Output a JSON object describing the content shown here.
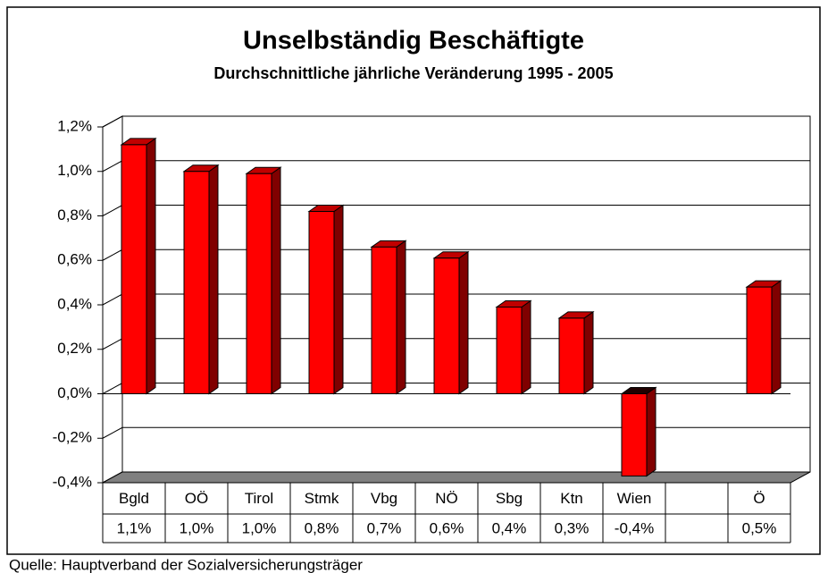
{
  "chart_data": {
    "type": "bar3d",
    "title": "Unselbständig Beschäftigte",
    "subtitle": "Durchschnittliche jährliche Veränderung 1995 - 2005",
    "categories": [
      "Bgld",
      "OÖ",
      "Tirol",
      "Stmk",
      "Vbg",
      "NÖ",
      "Sbg",
      "Ktn",
      "Wien",
      null,
      "Ö"
    ],
    "values": [
      1.12,
      1.0,
      0.99,
      0.82,
      0.66,
      0.61,
      0.39,
      0.34,
      -0.37,
      null,
      0.48
    ],
    "value_labels": [
      "1,1%",
      "1,0%",
      "1,0%",
      "0,8%",
      "0,7%",
      "0,6%",
      "0,4%",
      "0,3%",
      "-0,4%",
      null,
      "0,5%"
    ],
    "color": "#ff0000",
    "ylim": [
      -0.4,
      1.2
    ],
    "yticks": [
      {
        "value": -0.4,
        "label": "-0,4%"
      },
      {
        "value": -0.2,
        "label": "-0,2%"
      },
      {
        "value": 0,
        "label": "0,0%"
      },
      {
        "value": 0.2,
        "label": "0,2%"
      },
      {
        "value": 0.4,
        "label": "0,4%"
      },
      {
        "value": 0.6,
        "label": "0,6%"
      },
      {
        "value": 0.8,
        "label": "0,8%"
      },
      {
        "value": 1.0,
        "label": "1,0%"
      },
      {
        "value": 1.2,
        "label": "1,2%"
      }
    ],
    "grid": true,
    "source": "Quelle: Hauptverband der Sozialversicherungsträger"
  }
}
